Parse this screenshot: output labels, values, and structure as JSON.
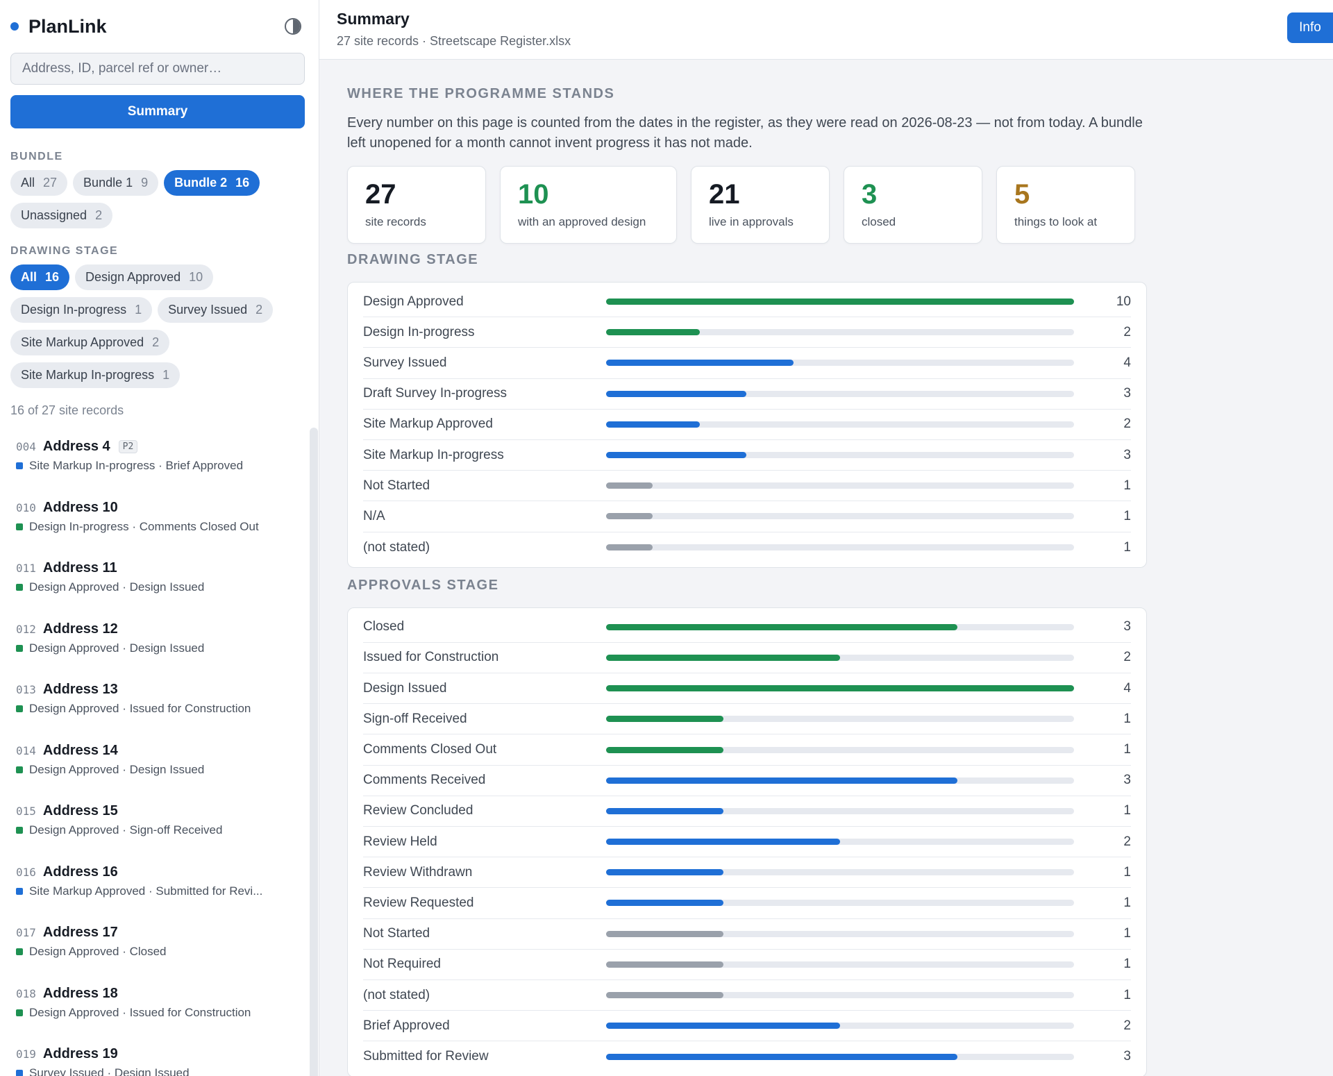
{
  "sidebar": {
    "brand": "PlanLink",
    "search_placeholder": "Address, ID, parcel ref or owner…",
    "summary_label": "Summary",
    "bundle_label": "BUNDLE",
    "bundle_pills": [
      {
        "label": "All",
        "count": "27",
        "active": false
      },
      {
        "label": "Bundle 1",
        "count": "9",
        "active": false
      },
      {
        "label": "Bundle 2",
        "count": "16",
        "active": true
      },
      {
        "label": "Unassigned",
        "count": "2",
        "active": false
      }
    ],
    "drawing_label": "DRAWING STAGE",
    "drawing_pills": [
      {
        "label": "All",
        "count": "16",
        "active": true
      },
      {
        "label": "Design Approved",
        "count": "10",
        "active": false
      },
      {
        "label": "Design In-progress",
        "count": "1",
        "active": false
      },
      {
        "label": "Survey Issued",
        "count": "2",
        "active": false
      },
      {
        "label": "Site Markup Approved",
        "count": "2",
        "active": false
      },
      {
        "label": "Site Markup In-progress",
        "count": "1",
        "active": false
      }
    ],
    "record_count": "16 of 27 site records",
    "records": [
      {
        "id": "004",
        "name": "Address 4",
        "badge": "P2",
        "status": "Site Markup In-progress · Brief Approved",
        "color": "blue"
      },
      {
        "id": "010",
        "name": "Address 10",
        "badge": "",
        "status": "Design In-progress · Comments Closed Out",
        "color": "green"
      },
      {
        "id": "011",
        "name": "Address 11",
        "badge": "",
        "status": "Design Approved · Design Issued",
        "color": "green"
      },
      {
        "id": "012",
        "name": "Address 12",
        "badge": "",
        "status": "Design Approved · Design Issued",
        "color": "green"
      },
      {
        "id": "013",
        "name": "Address 13",
        "badge": "",
        "status": "Design Approved · Issued for Construction",
        "color": "green"
      },
      {
        "id": "014",
        "name": "Address 14",
        "badge": "",
        "status": "Design Approved · Design Issued",
        "color": "green"
      },
      {
        "id": "015",
        "name": "Address 15",
        "badge": "",
        "status": "Design Approved · Sign-off Received",
        "color": "green"
      },
      {
        "id": "016",
        "name": "Address 16",
        "badge": "",
        "status": "Site Markup Approved · Submitted for Revi...",
        "color": "blue"
      },
      {
        "id": "017",
        "name": "Address 17",
        "badge": "",
        "status": "Design Approved · Closed",
        "color": "green"
      },
      {
        "id": "018",
        "name": "Address 18",
        "badge": "",
        "status": "Design Approved · Issued for Construction",
        "color": "green"
      },
      {
        "id": "019",
        "name": "Address 19",
        "badge": "",
        "status": "Survey Issued · Design Issued",
        "color": "blue"
      }
    ]
  },
  "header": {
    "title": "Summary",
    "subtitle": "27 site records · Streetscape Register.xlsx",
    "info_label": "Info"
  },
  "main": {
    "stands_heading": "WHERE THE PROGRAMME STANDS",
    "intro": "Every number on this page is counted from the dates in the register, as they were read on 2026-08-23 — not from today. A bundle left unopened for a month cannot invent progress it has not made.",
    "stats": [
      {
        "value": "27",
        "label": "site records",
        "color": "default"
      },
      {
        "value": "10",
        "label": "with an approved design",
        "color": "green"
      },
      {
        "value": "21",
        "label": "live in approvals",
        "color": "default"
      },
      {
        "value": "3",
        "label": "closed",
        "color": "green"
      },
      {
        "value": "5",
        "label": "things to look at",
        "color": "gold"
      }
    ],
    "drawing_heading": "DRAWING STAGE",
    "drawing_rows": [
      {
        "label": "Design Approved",
        "value": 10,
        "max": 10,
        "color": "green"
      },
      {
        "label": "Design In-progress",
        "value": 2,
        "max": 10,
        "color": "green"
      },
      {
        "label": "Survey Issued",
        "value": 4,
        "max": 10,
        "color": "blue"
      },
      {
        "label": "Draft Survey In-progress",
        "value": 3,
        "max": 10,
        "color": "blue"
      },
      {
        "label": "Site Markup Approved",
        "value": 2,
        "max": 10,
        "color": "blue"
      },
      {
        "label": "Site Markup In-progress",
        "value": 3,
        "max": 10,
        "color": "blue"
      },
      {
        "label": "Not Started",
        "value": 1,
        "max": 10,
        "color": "gray"
      },
      {
        "label": "N/A",
        "value": 1,
        "max": 10,
        "color": "gray"
      },
      {
        "label": "(not stated)",
        "value": 1,
        "max": 10,
        "color": "gray"
      }
    ],
    "approvals_heading": "APPROVALS STAGE",
    "approval_rows": [
      {
        "label": "Closed",
        "value": 3,
        "max": 4,
        "color": "green"
      },
      {
        "label": "Issued for Construction",
        "value": 2,
        "max": 4,
        "color": "green"
      },
      {
        "label": "Design Issued",
        "value": 4,
        "max": 4,
        "color": "green"
      },
      {
        "label": "Sign-off Received",
        "value": 1,
        "max": 4,
        "color": "green"
      },
      {
        "label": "Comments Closed Out",
        "value": 1,
        "max": 4,
        "color": "green"
      },
      {
        "label": "Comments Received",
        "value": 3,
        "max": 4,
        "color": "blue"
      },
      {
        "label": "Review Concluded",
        "value": 1,
        "max": 4,
        "color": "blue"
      },
      {
        "label": "Review Held",
        "value": 2,
        "max": 4,
        "color": "blue"
      },
      {
        "label": "Review Withdrawn",
        "value": 1,
        "max": 4,
        "color": "blue"
      },
      {
        "label": "Review Requested",
        "value": 1,
        "max": 4,
        "color": "blue"
      },
      {
        "label": "Not Started",
        "value": 1,
        "max": 4,
        "color": "gray"
      },
      {
        "label": "Not Required",
        "value": 1,
        "max": 4,
        "color": "gray"
      },
      {
        "label": "(not stated)",
        "value": 1,
        "max": 4,
        "color": "gray"
      },
      {
        "label": "Brief Approved",
        "value": 2,
        "max": 4,
        "color": "blue"
      },
      {
        "label": "Submitted for Review",
        "value": 3,
        "max": 4,
        "color": "blue"
      }
    ]
  },
  "colors": {
    "accent": "#1f6fd6",
    "green": "#1e9152",
    "gold": "#a8761e",
    "gray": "#9aa1ab"
  }
}
